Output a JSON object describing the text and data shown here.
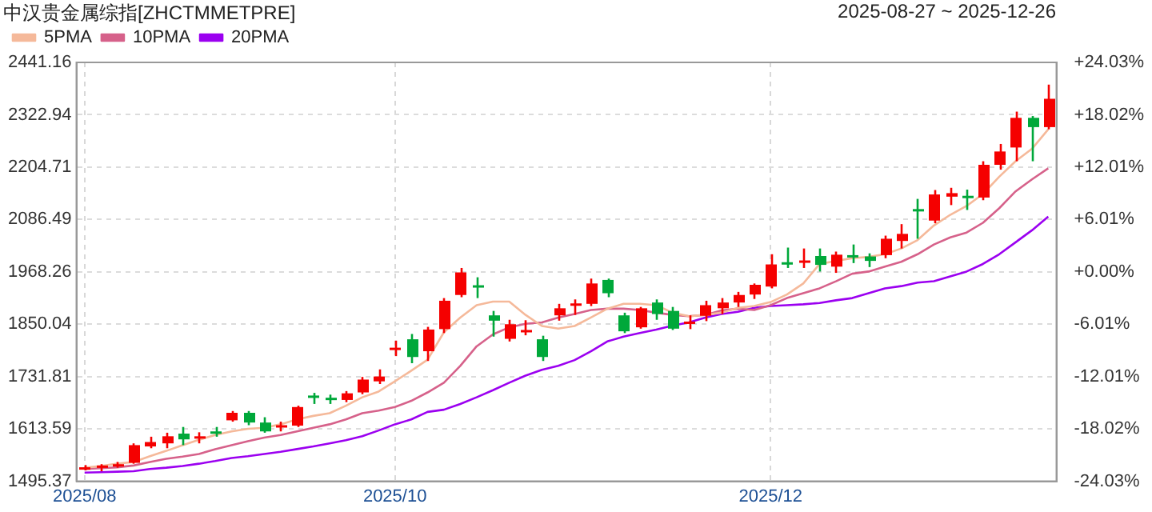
{
  "chart_data": {
    "type": "candlestick",
    "title": "中汉贵金属综指[ZHCTMMETPRE]",
    "subtitle": "2025-08-27 ~ 2025-12-26",
    "categories": [
      "2025/08",
      null,
      null,
      null,
      null,
      null,
      null,
      null,
      null,
      null,
      null,
      null,
      null,
      null,
      null,
      null,
      null,
      null,
      null,
      "2025/10",
      null,
      null,
      null,
      null,
      null,
      null,
      null,
      null,
      null,
      null,
      null,
      null,
      null,
      null,
      null,
      null,
      null,
      null,
      null,
      null,
      null,
      null,
      "2025/12",
      null,
      null,
      null,
      null,
      null,
      null,
      null,
      null,
      null,
      null,
      null,
      null,
      null,
      null,
      null,
      null,
      null
    ],
    "ohlc": [
      [
        1525,
        1532,
        1520,
        1527
      ],
      [
        1526,
        1534,
        1518,
        1531
      ],
      [
        1532,
        1539,
        1526,
        1534
      ],
      [
        1537,
        1581,
        1535,
        1577
      ],
      [
        1574,
        1596,
        1570,
        1584
      ],
      [
        1581,
        1605,
        1570,
        1597
      ],
      [
        1603,
        1618,
        1577,
        1590
      ],
      [
        1595,
        1606,
        1581,
        1597
      ],
      [
        1608,
        1618,
        1596,
        1606
      ],
      [
        1633,
        1654,
        1630,
        1650
      ],
      [
        1650,
        1654,
        1622,
        1628
      ],
      [
        1628,
        1640,
        1605,
        1608
      ],
      [
        1620,
        1630,
        1608,
        1622
      ],
      [
        1621,
        1666,
        1618,
        1663
      ],
      [
        1689,
        1695,
        1670,
        1687
      ],
      [
        1684,
        1691,
        1670,
        1682
      ],
      [
        1679,
        1699,
        1674,
        1694
      ],
      [
        1696,
        1731,
        1692,
        1725
      ],
      [
        1721,
        1748,
        1715,
        1732
      ],
      [
        1795,
        1813,
        1778,
        1797
      ],
      [
        1816,
        1828,
        1762,
        1776
      ],
      [
        1789,
        1844,
        1767,
        1838
      ],
      [
        1839,
        1909,
        1830,
        1903
      ],
      [
        1916,
        1977,
        1911,
        1967
      ],
      [
        1938,
        1956,
        1909,
        1936
      ],
      [
        1870,
        1880,
        1822,
        1858
      ],
      [
        1817,
        1860,
        1811,
        1850
      ],
      [
        1835,
        1859,
        1825,
        1837
      ],
      [
        1816,
        1824,
        1767,
        1776
      ],
      [
        1870,
        1896,
        1858,
        1886
      ],
      [
        1895,
        1906,
        1871,
        1897
      ],
      [
        1896,
        1953,
        1891,
        1942
      ],
      [
        1950,
        1953,
        1911,
        1920
      ],
      [
        1870,
        1876,
        1830,
        1834
      ],
      [
        1843,
        1889,
        1840,
        1886
      ],
      [
        1899,
        1906,
        1860,
        1873
      ],
      [
        1880,
        1889,
        1837,
        1840
      ],
      [
        1853,
        1870,
        1839,
        1856
      ],
      [
        1869,
        1903,
        1857,
        1893
      ],
      [
        1886,
        1909,
        1873,
        1899
      ],
      [
        1899,
        1923,
        1889,
        1916
      ],
      [
        1917,
        1942,
        1907,
        1939
      ],
      [
        1935,
        2008,
        1931,
        1985
      ],
      [
        1990,
        2023,
        1977,
        1988
      ],
      [
        1992,
        2021,
        1977,
        1994
      ],
      [
        2004,
        2021,
        1969,
        1984
      ],
      [
        1980,
        2014,
        1966,
        2007
      ],
      [
        2006,
        2030,
        1988,
        2004
      ],
      [
        2003,
        2010,
        1979,
        1993
      ],
      [
        2006,
        2050,
        1999,
        2043
      ],
      [
        2038,
        2076,
        2021,
        2054
      ],
      [
        2110,
        2133,
        2043,
        2107
      ],
      [
        2084,
        2153,
        2078,
        2143
      ],
      [
        2138,
        2158,
        2119,
        2146
      ],
      [
        2140,
        2154,
        2108,
        2138
      ],
      [
        2136,
        2218,
        2130,
        2210
      ],
      [
        2210,
        2257,
        2199,
        2240
      ],
      [
        2249,
        2330,
        2218,
        2316
      ],
      [
        2316,
        2320,
        2218,
        2295
      ],
      [
        2295,
        2391,
        2290,
        2359
      ]
    ],
    "colors": [
      "#f50000",
      "#f50000",
      "#f50000",
      "#f50000",
      "#f50000",
      "#f50000",
      "#00a83a",
      "#f50000",
      "#00a83a",
      "#f50000",
      "#00a83a",
      "#00a83a",
      "#f50000",
      "#f50000",
      "#00a83a",
      "#00a83a",
      "#f50000",
      "#f50000",
      "#f50000",
      "#f50000",
      "#00a83a",
      "#f50000",
      "#f50000",
      "#f50000",
      "#00a83a",
      "#00a83a",
      "#f50000",
      "#f50000",
      "#00a83a",
      "#f50000",
      "#f50000",
      "#f50000",
      "#00a83a",
      "#00a83a",
      "#f50000",
      "#00a83a",
      "#00a83a",
      "#f50000",
      "#f50000",
      "#f50000",
      "#f50000",
      "#f50000",
      "#f50000",
      "#00a83a",
      "#f50000",
      "#00a83a",
      "#f50000",
      "#00a83a",
      "#00a83a",
      "#f50000",
      "#f50000",
      "#00a83a",
      "#f50000",
      "#f50000",
      "#00a83a",
      "#f50000",
      "#f50000",
      "#f50000",
      "#00a83a",
      "#f50000"
    ],
    "series": [
      {
        "name": "5PMA",
        "type": "line",
        "color": "#f5b99a",
        "values": [
          1526,
          1530,
          1535,
          1539,
          1552,
          1564,
          1577,
          1589,
          1600,
          1608,
          1614,
          1616,
          1624,
          1635,
          1643,
          1649,
          1666,
          1685,
          1698,
          1721,
          1745,
          1770,
          1832,
          1865,
          1893,
          1901,
          1901,
          1871,
          1846,
          1840,
          1846,
          1865,
          1885,
          1896,
          1896,
          1893,
          1876,
          1868,
          1871,
          1876,
          1887,
          1891,
          1900,
          1917,
          1942,
          1986,
          1993,
          1999,
          2002,
          2008,
          2021,
          2040,
          2073,
          2097,
          2117,
          2144,
          2183,
          2218,
          2246,
          2290
        ]
      },
      {
        "name": "10PMA",
        "type": "line",
        "color": "#d6618a",
        "values": [
          1523,
          1525,
          1527,
          1531,
          1539,
          1546,
          1551,
          1557,
          1568,
          1577,
          1586,
          1594,
          1600,
          1608,
          1616,
          1624,
          1635,
          1649,
          1655,
          1663,
          1677,
          1696,
          1718,
          1756,
          1800,
          1827,
          1843,
          1851,
          1854,
          1865,
          1873,
          1882,
          1885,
          1885,
          1882,
          1876,
          1871,
          1868,
          1871,
          1881,
          1885,
          1882,
          1893,
          1909,
          1920,
          1931,
          1947,
          1964,
          1969,
          1980,
          1991,
          2008,
          2030,
          2046,
          2057,
          2079,
          2112,
          2150,
          2177,
          2202
        ]
      },
      {
        "name": "20PMA",
        "type": "line",
        "color": "#9b00f0",
        "values": [
          1515,
          1516,
          1517,
          1518,
          1523,
          1526,
          1530,
          1535,
          1541,
          1548,
          1552,
          1557,
          1562,
          1568,
          1574,
          1581,
          1588,
          1597,
          1610,
          1624,
          1635,
          1652,
          1657,
          1670,
          1685,
          1701,
          1718,
          1734,
          1747,
          1756,
          1769,
          1789,
          1811,
          1822,
          1830,
          1838,
          1847,
          1854,
          1865,
          1873,
          1878,
          1887,
          1891,
          1893,
          1895,
          1898,
          1904,
          1909,
          1920,
          1931,
          1936,
          1944,
          1947,
          1958,
          1969,
          1986,
          2008,
          2035,
          2062,
          2093
        ]
      }
    ],
    "ylim": [
      1495.37,
      2441.16
    ],
    "yticks": [
      1495.37,
      1613.59,
      1731.81,
      1850.04,
      1968.26,
      2086.49,
      2204.71,
      2322.94,
      2441.16
    ],
    "y2lim": [
      -24.03,
      24.03
    ],
    "y2ticks": [
      {
        "value": -24.03,
        "label": "-24.03%"
      },
      {
        "value": -18.02,
        "label": "-18.02%"
      },
      {
        "value": -12.01,
        "label": "-12.01%"
      },
      {
        "value": -6.01,
        "label": "-6.01%"
      },
      {
        "value": 0,
        "label": "+0.00%"
      },
      {
        "value": 6.01,
        "label": "+6.01%"
      },
      {
        "value": 12.01,
        "label": "+12.01%"
      },
      {
        "value": 18.02,
        "label": "+18.02%"
      },
      {
        "value": 24.03,
        "label": "+24.03%"
      }
    ],
    "grid": true,
    "legend": "top left"
  }
}
